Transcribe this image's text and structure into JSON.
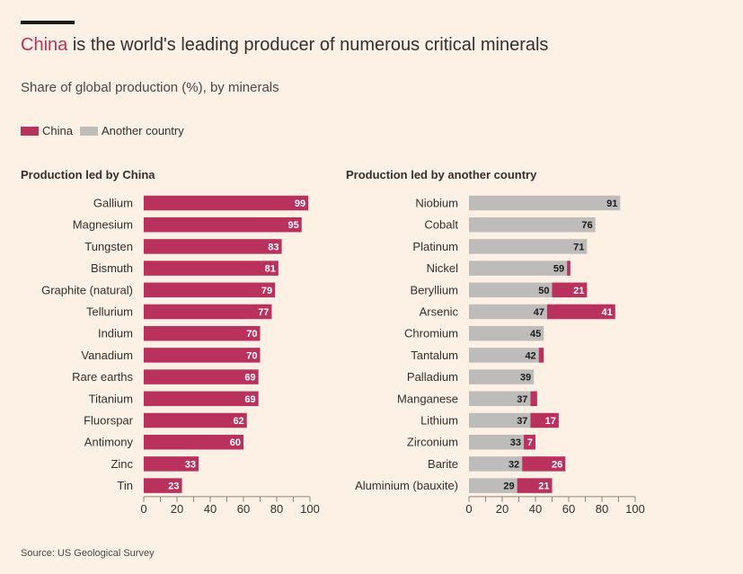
{
  "header": {
    "title_highlight": "China",
    "title_rest": " is the world's leading producer of numerous critical minerals",
    "subtitle": "Share of global production (%), by minerals"
  },
  "legend": {
    "china_label": "China",
    "other_label": "Another country"
  },
  "colors": {
    "china": "#b8325d",
    "other": "#bdbcbb",
    "axis": "#8b8580",
    "text": "#33302e"
  },
  "chart_data": [
    {
      "type": "bar",
      "title": "Production led by China",
      "xlim": [
        0,
        100
      ],
      "xticks": [
        0,
        20,
        40,
        60,
        80,
        100
      ],
      "categories": [
        "Gallium",
        "Magnesium",
        "Tungsten",
        "Bismuth",
        "Graphite (natural)",
        "Tellurium",
        "Indium",
        "Vanadium",
        "Rare earths",
        "Titanium",
        "Fluorspar",
        "Antimony",
        "Zinc",
        "Tin"
      ],
      "series": [
        {
          "name": "China",
          "values": [
            99,
            95,
            83,
            81,
            79,
            77,
            70,
            70,
            69,
            69,
            62,
            60,
            33,
            23
          ]
        }
      ]
    },
    {
      "type": "bar",
      "title": "Production led by another country",
      "xlim": [
        0,
        100
      ],
      "xticks": [
        0,
        20,
        40,
        60,
        80,
        100
      ],
      "categories": [
        "Niobium",
        "Cobalt",
        "Platinum",
        "Nickel",
        "Beryllium",
        "Arsenic",
        "Chromium",
        "Tantalum",
        "Palladium",
        "Manganese",
        "Lithium",
        "Zirconium",
        "Barite",
        "Aluminium (bauxite)"
      ],
      "series": [
        {
          "name": "Another country",
          "values": [
            91,
            76,
            71,
            59,
            50,
            47,
            45,
            42,
            39,
            37,
            37,
            33,
            32,
            29
          ]
        },
        {
          "name": "China",
          "values": [
            null,
            null,
            null,
            2,
            21,
            41,
            null,
            3,
            null,
            4,
            17,
            7,
            26,
            21
          ]
        }
      ]
    }
  ],
  "source": "Source: US Geological Survey"
}
